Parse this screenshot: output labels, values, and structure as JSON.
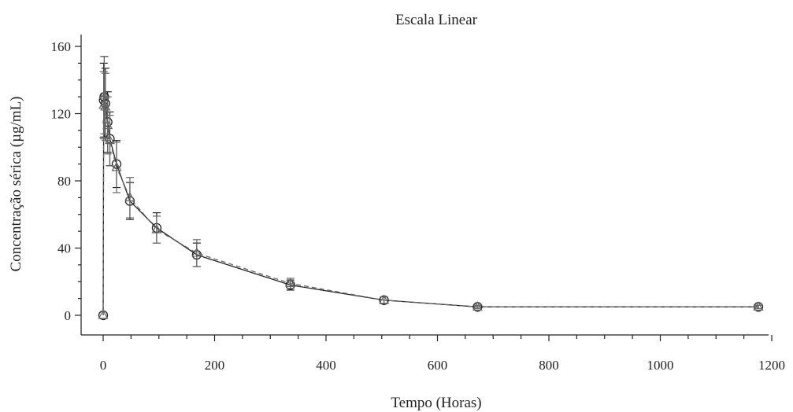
{
  "chart_data": {
    "type": "line",
    "title": "Escala Linear",
    "xlabel": "Tempo (Horas)",
    "ylabel": "Concentração sérica (µg/mL)",
    "xlim": [
      -40,
      1210
    ],
    "ylim": [
      -10,
      166
    ],
    "xticks": [
      0,
      200,
      400,
      600,
      800,
      1000,
      1200
    ],
    "xtick_labels": [
      "0",
      "200",
      "400",
      "600",
      "800",
      "1000",
      "1200"
    ],
    "yticks": [
      0,
      40,
      80,
      120,
      160
    ],
    "ytick_labels": [
      "0",
      "40",
      "80",
      "120",
      "160"
    ],
    "grid": false,
    "colors": {
      "series_a": "#222222",
      "series_b": "#666666"
    },
    "series": [
      {
        "line_style": "solid",
        "marker": "circle",
        "x": [
          0,
          1,
          2,
          4,
          8,
          12,
          24,
          48,
          96,
          168,
          336,
          504,
          672,
          1176
        ],
        "y": [
          0,
          128,
          130,
          126,
          115,
          105,
          90,
          68,
          52,
          36,
          18,
          9,
          5,
          5
        ],
        "err": [
          0,
          22,
          24,
          21,
          18,
          16,
          14,
          11,
          9,
          7,
          3,
          2,
          1,
          1
        ]
      },
      {
        "line_style": "dashed",
        "marker": "triangle",
        "x": [
          0,
          1,
          2,
          4,
          8,
          12,
          24,
          48,
          96,
          168,
          336,
          504,
          672,
          1176
        ],
        "y": [
          0,
          125,
          131,
          124,
          113,
          104,
          88,
          70,
          51,
          37,
          19,
          9,
          5,
          5
        ],
        "err": [
          0,
          20,
          23,
          20,
          17,
          15,
          15,
          12,
          8,
          8,
          3,
          2,
          1,
          1
        ]
      }
    ]
  }
}
